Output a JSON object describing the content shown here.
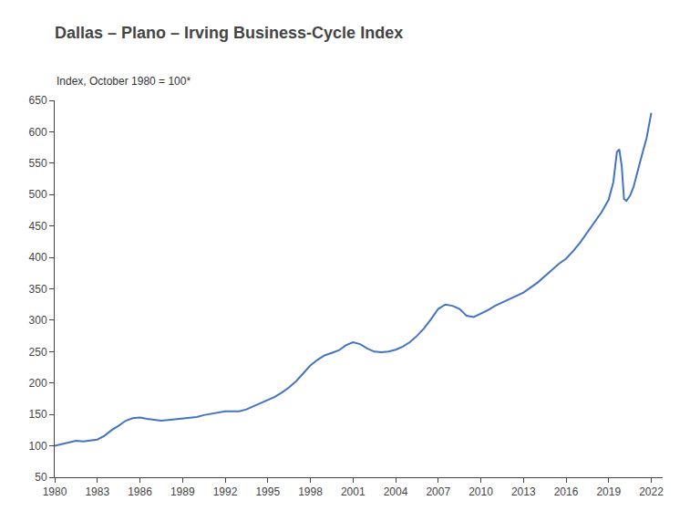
{
  "chart_data": {
    "type": "line",
    "title": "Dallas – Plano – Irving Business-Cycle Index",
    "subtitle": "Index, October 1980 = 100*",
    "color": "#4472C4",
    "x": [
      1980.0,
      1980.5,
      1981.0,
      1981.5,
      1982.0,
      1982.5,
      1983.0,
      1983.5,
      1984.0,
      1984.5,
      1985.0,
      1985.5,
      1986.0,
      1986.5,
      1987.0,
      1987.5,
      1988.0,
      1988.5,
      1989.0,
      1989.5,
      1990.0,
      1990.5,
      1991.0,
      1991.5,
      1992.0,
      1992.5,
      1993.0,
      1993.5,
      1994.0,
      1994.5,
      1995.0,
      1995.5,
      1996.0,
      1996.5,
      1997.0,
      1997.5,
      1998.0,
      1998.5,
      1999.0,
      1999.5,
      2000.0,
      2000.5,
      2001.0,
      2001.5,
      2002.0,
      2002.5,
      2003.0,
      2003.5,
      2004.0,
      2004.5,
      2005.0,
      2005.5,
      2006.0,
      2006.5,
      2007.0,
      2007.5,
      2008.0,
      2008.5,
      2009.0,
      2009.5,
      2010.0,
      2010.5,
      2011.0,
      2011.5,
      2012.0,
      2012.5,
      2013.0,
      2013.5,
      2014.0,
      2014.5,
      2015.0,
      2015.5,
      2016.0,
      2016.5,
      2017.0,
      2017.5,
      2018.0,
      2018.5,
      2019.0,
      2019.33,
      2019.58,
      2019.75,
      2019.92,
      2020.08,
      2020.25,
      2020.5,
      2020.75,
      2021.0,
      2021.33,
      2021.67,
      2022.0
    ],
    "values": [
      100,
      103,
      106,
      108,
      107,
      108,
      110,
      116,
      125,
      132,
      140,
      144,
      145,
      143,
      141,
      140,
      141,
      142,
      143,
      144,
      146,
      149,
      151,
      153,
      155,
      155,
      155,
      158,
      163,
      168,
      172,
      178,
      185,
      193,
      203,
      215,
      228,
      237,
      244,
      248,
      252,
      260,
      265,
      262,
      255,
      250,
      249,
      250,
      253,
      258,
      265,
      275,
      287,
      302,
      318,
      325,
      323,
      318,
      307,
      305,
      310,
      316,
      323,
      328,
      333,
      338,
      344,
      352,
      360,
      370,
      380,
      390,
      398,
      410,
      424,
      440,
      456,
      472,
      492,
      520,
      568,
      572,
      545,
      493,
      490,
      498,
      512,
      535,
      562,
      590,
      630
    ],
    "xlim": [
      1980,
      2022.8
    ],
    "xticks": [
      1980,
      1983,
      1986,
      1989,
      1992,
      1995,
      1998,
      2001,
      2004,
      2007,
      2010,
      2013,
      2016,
      2019,
      2022
    ],
    "ylim": [
      50,
      650
    ],
    "yticks": [
      50,
      100,
      150,
      200,
      250,
      300,
      350,
      400,
      450,
      500,
      550,
      600,
      650
    ],
    "grid": false
  }
}
